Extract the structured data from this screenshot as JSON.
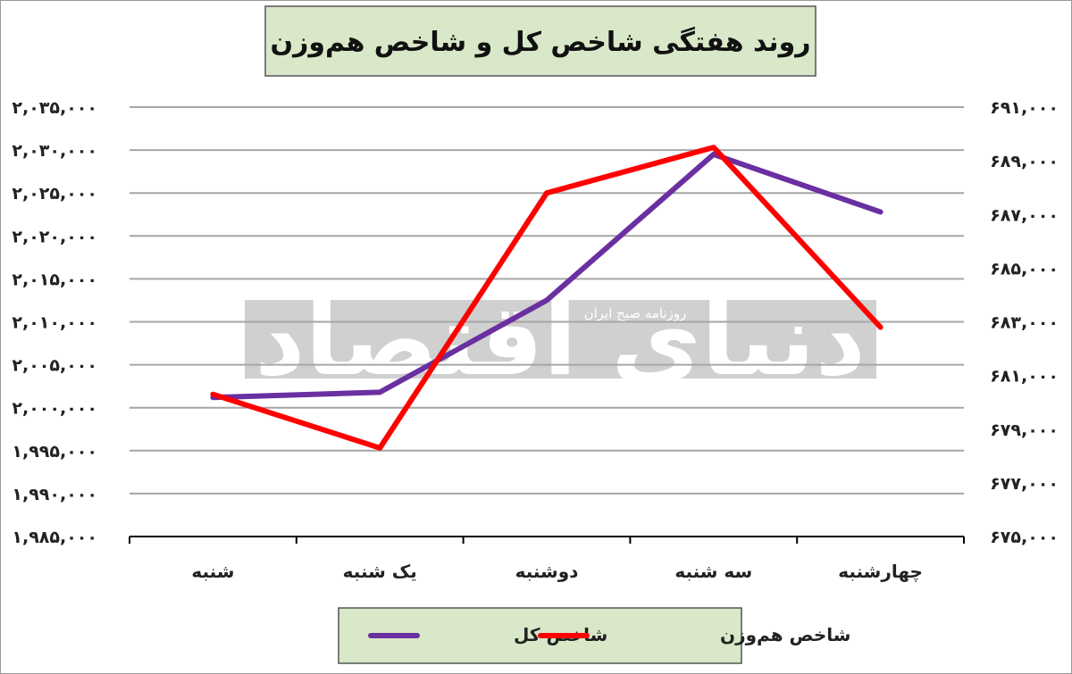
{
  "chart_data": {
    "type": "line",
    "title": "روند هفتگی شاخص کل و شاخص هم‌وزن",
    "categories": [
      "شنبه",
      "یک شنبه",
      "دوشنبه",
      "سه شنبه",
      "چهارشنبه"
    ],
    "series": [
      {
        "name": "شاخص کل",
        "axis": "left",
        "color": "#6a2fa0",
        "values": [
          2001200,
          2001800,
          2012500,
          2029500,
          2022800
        ]
      },
      {
        "name": "شاخص هم‌وزن",
        "axis": "right",
        "color": "#ff0000",
        "values": [
          680300,
          678300,
          687800,
          689500,
          682800
        ]
      }
    ],
    "y_left": {
      "ylim": [
        1985000,
        2035000
      ],
      "tick_labels": [
        "۱,۹۸۵,۰۰۰",
        "۱,۹۹۰,۰۰۰",
        "۱,۹۹۵,۰۰۰",
        "۲,۰۰۰,۰۰۰",
        "۲,۰۰۵,۰۰۰",
        "۲,۰۱۰,۰۰۰",
        "۲,۰۱۵,۰۰۰",
        "۲,۰۲۰,۰۰۰",
        "۲,۰۲۵,۰۰۰",
        "۲,۰۳۰,۰۰۰",
        "۲,۰۳۵,۰۰۰"
      ]
    },
    "y_right": {
      "ylim": [
        675000,
        691000
      ],
      "tick_labels": [
        "۶۷۵,۰۰۰",
        "۶۷۷,۰۰۰",
        "۶۷۹,۰۰۰",
        "۶۸۱,۰۰۰",
        "۶۸۳,۰۰۰",
        "۶۸۵,۰۰۰",
        "۶۸۷,۰۰۰",
        "۶۸۹,۰۰۰",
        "۶۹۱,۰۰۰"
      ]
    },
    "grid": true,
    "legend_position": "bottom",
    "title_box_color": "#d8e8c8",
    "legend_box_color": "#d8e8c8"
  },
  "watermark": {
    "main_text": "دنیای اقتصاد",
    "sub_text": "روزنامه صبح ایران",
    "color": "#c8c8c8"
  }
}
